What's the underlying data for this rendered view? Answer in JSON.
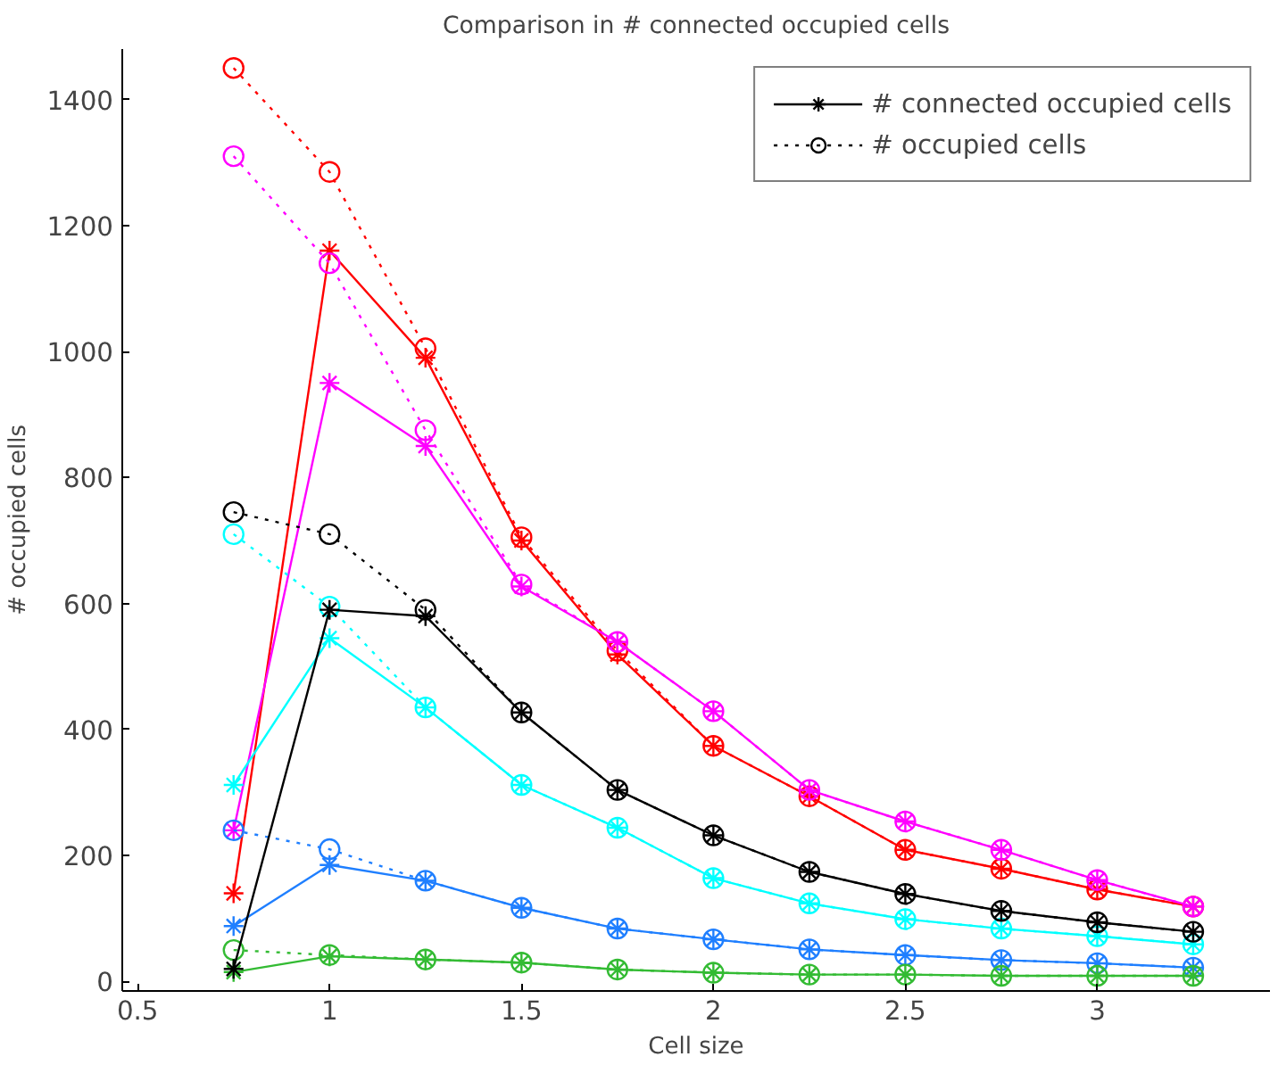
{
  "chart_data": {
    "type": "line",
    "title": "Comparison in # connected occupied cells",
    "xlabel": "Cell size",
    "ylabel": "# occupied cells",
    "x": [
      0.75,
      1,
      1.25,
      1.5,
      1.75,
      2,
      2.25,
      2.5,
      2.75,
      3,
      3.25
    ],
    "xlim": [
      0.46,
      3.45
    ],
    "xticks": [
      0.5,
      1,
      1.5,
      2,
      2.5,
      3
    ],
    "ylim": [
      -15,
      1480
    ],
    "yticks": [
      0,
      200,
      400,
      600,
      800,
      1000,
      1200,
      1400
    ],
    "grid": false,
    "legend": "top right",
    "series": [
      {
        "color": "#ff0000",
        "marker": "cross",
        "line_style": "solid",
        "values": [
          140,
          1160,
          990,
          700,
          519,
          374,
          294,
          209,
          179,
          146,
          119
        ]
      },
      {
        "color": "#ff0000",
        "marker": "circle",
        "line_style": "dotted",
        "values": [
          1450,
          1285,
          1005,
          705,
          525,
          374,
          294,
          209,
          179,
          146,
          119
        ]
      },
      {
        "color": "#ff00ff",
        "marker": "cross",
        "line_style": "solid",
        "values": [
          240,
          950,
          850,
          627,
          539,
          429,
          304,
          254,
          209,
          161,
          119
        ]
      },
      {
        "color": "#ff00ff",
        "marker": "circle",
        "line_style": "dotted",
        "values": [
          1310,
          1140,
          875,
          630,
          539,
          429,
          304,
          254,
          209,
          161,
          119
        ]
      },
      {
        "color": "#00ffff",
        "marker": "cross",
        "line_style": "solid",
        "values": [
          312,
          545,
          435,
          312,
          244,
          164,
          124,
          99,
          84,
          72,
          59
        ]
      },
      {
        "color": "#00ffff",
        "marker": "circle",
        "line_style": "dotted",
        "values": [
          710,
          595,
          435,
          312,
          244,
          164,
          124,
          99,
          84,
          72,
          59
        ]
      },
      {
        "color": "#1f7fff",
        "marker": "cross",
        "line_style": "solid",
        "values": [
          88,
          185,
          160,
          117,
          84,
          67,
          51,
          42,
          34,
          29,
          22
        ]
      },
      {
        "color": "#1f7fff",
        "marker": "circle",
        "line_style": "dotted",
        "values": [
          240,
          210,
          160,
          117,
          84,
          67,
          51,
          42,
          34,
          29,
          22
        ]
      },
      {
        "color": "#33bb33",
        "marker": "cross",
        "line_style": "solid",
        "values": [
          15,
          40,
          35,
          30,
          19,
          14,
          11,
          11,
          9,
          9,
          9
        ]
      },
      {
        "color": "#33bb33",
        "marker": "circle",
        "line_style": "dotted",
        "values": [
          50,
          42,
          35,
          30,
          19,
          14,
          11,
          11,
          9,
          9,
          9
        ]
      },
      {
        "name": "# connected occupied cells",
        "color": "#000000",
        "marker": "cross",
        "line_style": "solid",
        "values": [
          20,
          590,
          580,
          427,
          304,
          232,
          174,
          139,
          112,
          94,
          79
        ]
      },
      {
        "name": "# occupied cells",
        "color": "#000000",
        "marker": "circle",
        "line_style": "dotted",
        "values": [
          745,
          710,
          590,
          427,
          304,
          232,
          174,
          139,
          112,
          94,
          79
        ]
      }
    ]
  }
}
